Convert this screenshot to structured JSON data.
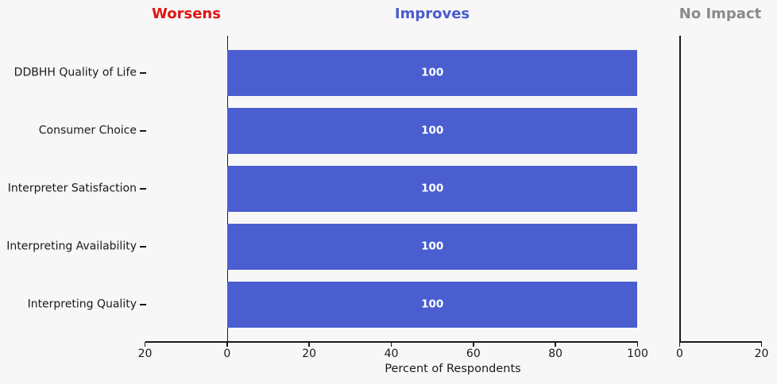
{
  "chart_data": {
    "type": "bar",
    "orientation": "horizontal",
    "categories": [
      "DDBHH Quality of Life",
      "Consumer Choice",
      "Interpreter Satisfaction",
      "Interpreting Availability",
      "Interpreting Quality"
    ],
    "series": [
      {
        "name": "Worsens",
        "values": [
          0,
          0,
          0,
          0,
          0
        ]
      },
      {
        "name": "Improves",
        "values": [
          100,
          100,
          100,
          100,
          100
        ],
        "color": "#4a5ed0",
        "value_labels": [
          "100",
          "100",
          "100",
          "100",
          "100"
        ]
      },
      {
        "name": "No Impact",
        "values": [
          0,
          0,
          0,
          0,
          0
        ]
      }
    ],
    "panel_titles": [
      {
        "label": "Worsens",
        "color": "#e01414"
      },
      {
        "label": "Improves",
        "color": "#4a5bd0"
      },
      {
        "label": "No Impact",
        "color": "#8a8a8a"
      }
    ],
    "main_axis": {
      "tick_values": [
        -20,
        0,
        20,
        40,
        60,
        80,
        100
      ],
      "tick_labels": [
        "20",
        "0",
        "20",
        "40",
        "60",
        "80",
        "100"
      ],
      "range": [
        -20,
        100
      ]
    },
    "no_impact_axis": {
      "tick_values": [
        0,
        20
      ],
      "tick_labels": [
        "0",
        "20"
      ],
      "range": [
        0,
        20
      ]
    },
    "xlabel": "Percent of Respondents",
    "grid": false,
    "legend": null,
    "background_color": "#f7f7f7",
    "axis_color": "#1a1a1a",
    "bar_label_color": "#ffffff"
  }
}
